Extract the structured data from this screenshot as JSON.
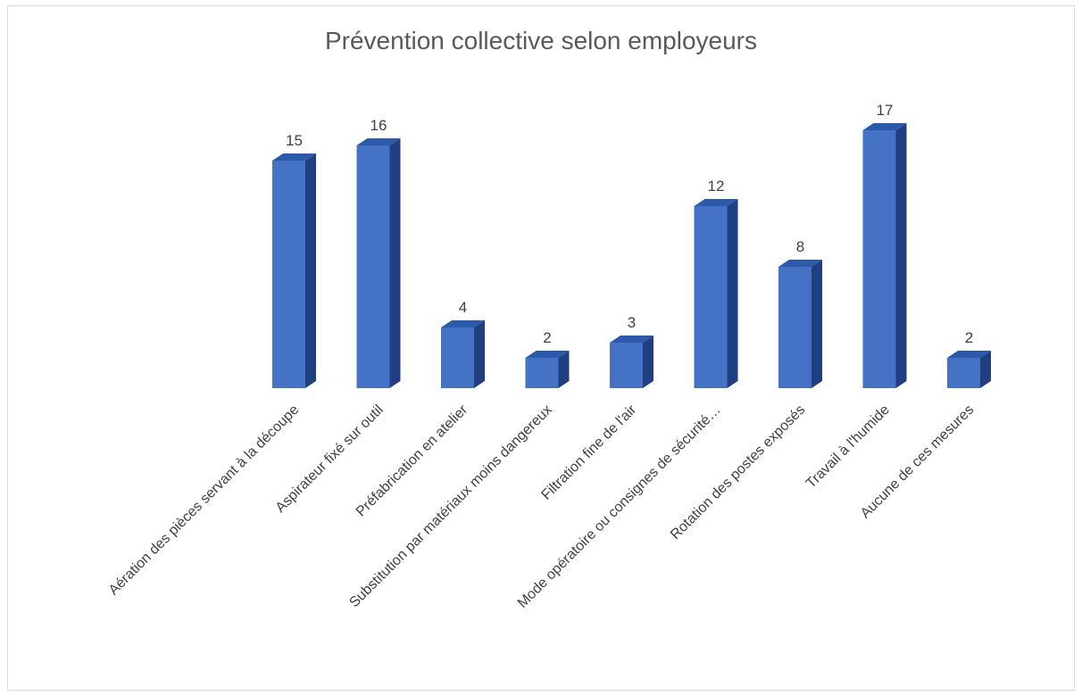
{
  "chart_data": {
    "type": "bar",
    "title": "Prévention collective selon employeurs",
    "categories": [
      "Aération des pièces servant à la découpe",
      "Aspirateur fixé sur outil",
      "Préfabrication en atelier",
      "Substitution par matériaux moins dangereux",
      "Filtration fine de l'air",
      "Mode opératoire ou consignes de sécurité…",
      "Rotation des postes exposés",
      "Travail à l'humide",
      "Aucune de ces mesures"
    ],
    "values": [
      15,
      16,
      4,
      2,
      3,
      12,
      8,
      17,
      2
    ],
    "ylim": [
      0,
      20
    ],
    "grid": false,
    "legend": "none",
    "colors": {
      "bar_front": "#4472c4",
      "bar_side": "#1f3f80",
      "bar_top": "#2d5aa8"
    }
  }
}
